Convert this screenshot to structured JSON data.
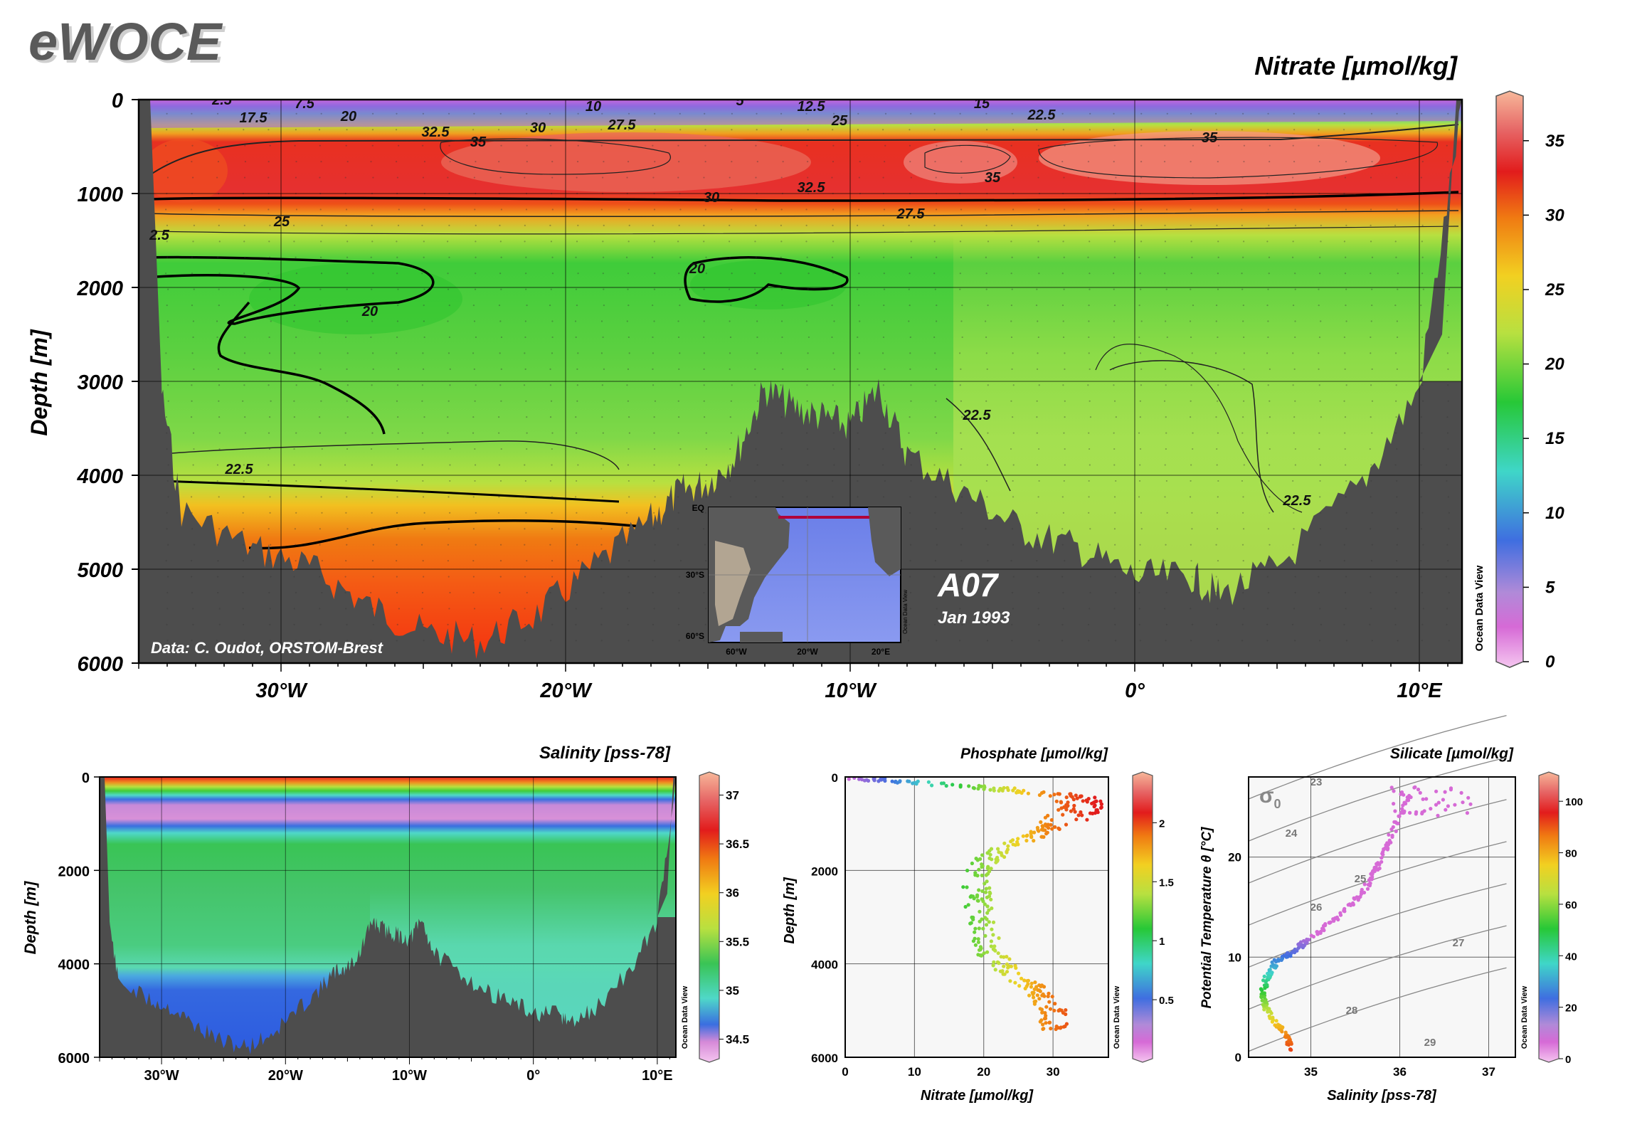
{
  "header": {
    "logo": "eWOCE"
  },
  "main_section": {
    "title": "Nitrate [µmol/kg]",
    "ylabel": "Depth [m]",
    "section_name": "A07",
    "date": "Jan 1993",
    "credit": "Data: C. Oudot, ORSTOM-Brest",
    "watermark": "Ocean Data View",
    "y_ticks": [
      "0",
      "1000",
      "2000",
      "3000",
      "4000",
      "5000",
      "6000"
    ],
    "x_ticks": [
      "30°W",
      "20°W",
      "10°W",
      "0°",
      "10°E"
    ],
    "colorbar_ticks": [
      "0",
      "5",
      "10",
      "15",
      "20",
      "25",
      "30",
      "35"
    ],
    "contour_labels": [
      "2.5",
      "7.5",
      "10",
      "5",
      "12.5",
      "15",
      "22.5",
      "17.5",
      "20",
      "32.5",
      "30",
      "27.5",
      "25",
      "35",
      "35",
      "35",
      "30",
      "32.5",
      "27.5",
      "25",
      "2.5",
      "20",
      "20",
      "22.5",
      "22.5",
      "22.5"
    ],
    "inset_map": {
      "lat_labels": [
        "EQ",
        "30°S",
        "60°S"
      ],
      "lon_labels": [
        "60°W",
        "20°W",
        "20°E"
      ],
      "watermark": "Ocean Data View"
    }
  },
  "salinity_panel": {
    "title": "Salinity [pss-78]",
    "ylabel": "Depth [m]",
    "y_ticks": [
      "0",
      "2000",
      "4000",
      "6000"
    ],
    "x_ticks": [
      "30°W",
      "20°W",
      "10°W",
      "0°",
      "10°E"
    ],
    "colorbar_ticks": [
      "34.5",
      "35",
      "35.5",
      "36",
      "36.5",
      "37"
    ],
    "watermark": "Ocean Data View"
  },
  "phosphate_panel": {
    "title": "Phosphate [µmol/kg]",
    "ylabel": "Depth [m]",
    "xlabel": "Nitrate [µmol/kg]",
    "y_ticks": [
      "0",
      "2000",
      "4000",
      "6000"
    ],
    "x_ticks": [
      "0",
      "10",
      "20",
      "30"
    ],
    "colorbar_ticks": [
      "0.5",
      "1",
      "1.5",
      "2"
    ],
    "watermark": "Ocean Data View"
  },
  "silicate_panel": {
    "title": "Silicate [µmol/kg]",
    "ylabel": "Potential Temperature θ [°C]",
    "xlabel": "Salinity [pss-78]",
    "y_ticks": [
      "0",
      "10",
      "20"
    ],
    "x_ticks": [
      "35",
      "36",
      "37"
    ],
    "sigma_label": "σ",
    "sigma_sub": "0",
    "isopycnal_labels": [
      "23",
      "24",
      "25",
      "26",
      "27",
      "28",
      "29"
    ],
    "colorbar_ticks": [
      "0",
      "20",
      "40",
      "60",
      "80",
      "100"
    ],
    "watermark": "Ocean Data View"
  },
  "colors": {
    "bathymetry": "#4d4d4d",
    "accent_title": "#000000",
    "logo_fill": "#5a5a5a"
  },
  "chart_data": [
    {
      "type": "heatmap",
      "title": "Nitrate [µmol/kg]",
      "ylabel": "Depth [m]",
      "xlim": [
        -35,
        11.5
      ],
      "ylim": [
        6000,
        0
      ],
      "x_ticks": [
        -30,
        -20,
        -10,
        0,
        10
      ],
      "depths": [
        0,
        50,
        150,
        250,
        400,
        600,
        900,
        1100,
        1400,
        1800,
        2500,
        3500,
        4200,
        4700,
        5500
      ],
      "nitrate_profile_west": [
        1,
        5,
        17,
        28,
        33,
        36,
        33,
        28,
        22,
        17,
        17,
        18,
        26,
        30,
        31
      ],
      "nitrate_profile_east": [
        1,
        8,
        20,
        30,
        34,
        36,
        32,
        27,
        22,
        20,
        22,
        23,
        23,
        23,
        23
      ],
      "bottom_depth": [
        [
          -35,
          0
        ],
        [
          -34.5,
          2500
        ],
        [
          -33.5,
          4300
        ],
        [
          -31,
          4700
        ],
        [
          -29,
          4900
        ],
        [
          -27,
          5300
        ],
        [
          -25,
          5600
        ],
        [
          -23,
          5700
        ],
        [
          -21,
          5400
        ],
        [
          -19,
          4900
        ],
        [
          -17,
          4400
        ],
        [
          -16,
          4100
        ],
        [
          -15,
          4000
        ],
        [
          -14,
          3700
        ],
        [
          -13,
          3000
        ],
        [
          -12,
          3200
        ],
        [
          -11,
          3300
        ],
        [
          -10,
          3400
        ],
        [
          -9,
          3000
        ],
        [
          -8,
          3700
        ],
        [
          -6,
          4100
        ],
        [
          -4,
          4500
        ],
        [
          -2,
          4700
        ],
        [
          0,
          5000
        ],
        [
          2,
          5000
        ],
        [
          3,
          5200
        ],
        [
          5,
          4900
        ],
        [
          8,
          4000
        ],
        [
          10,
          3000
        ],
        [
          11.5,
          0
        ]
      ],
      "colorbar": {
        "range": [
          0,
          38
        ],
        "ticks": [
          0,
          5,
          10,
          15,
          20,
          25,
          30,
          35
        ]
      }
    },
    {
      "type": "heatmap",
      "title": "Salinity [pss-78]",
      "ylabel": "Depth [m]",
      "xlim": [
        -35,
        11.5
      ],
      "ylim": [
        6000,
        0
      ],
      "depths": [
        0,
        50,
        150,
        300,
        500,
        800,
        1100,
        1500,
        2500,
        3800,
        4300,
        5500
      ],
      "salinity_profile": [
        36.8,
        36.2,
        35.6,
        35.1,
        34.55,
        34.45,
        34.75,
        34.95,
        34.98,
        34.93,
        34.75,
        34.7
      ],
      "colorbar": {
        "range": [
          34.3,
          37.2
        ],
        "ticks": [
          34.5,
          35,
          35.5,
          36,
          36.5,
          37
        ]
      }
    },
    {
      "type": "scatter",
      "title": "Phosphate [µmol/kg]",
      "xlabel": "Nitrate [µmol/kg]",
      "ylabel": "Depth [m]",
      "xlim": [
        0,
        38
      ],
      "ylim": [
        6000,
        0
      ],
      "colorbar": {
        "range": [
          0,
          2.4
        ],
        "ticks": [
          0.5,
          1,
          1.5,
          2
        ]
      },
      "profile": {
        "depth": [
          20,
          100,
          250,
          400,
          600,
          900,
          1200,
          1600,
          2000,
          2600,
          3200,
          3800,
          4200,
          4600,
          5000,
          5400
        ],
        "nitrate": [
          2,
          8,
          22,
          32,
          35,
          32,
          28,
          22,
          19,
          19,
          20,
          21,
          24,
          28,
          30,
          30
        ]
      }
    },
    {
      "type": "scatter",
      "title": "Silicate [µmol/kg]",
      "xlabel": "Salinity [pss-78]",
      "ylabel": "Potential Temperature θ [°C]",
      "xlim": [
        34.3,
        37.3
      ],
      "ylim": [
        0,
        28
      ],
      "colorbar": {
        "range": [
          0,
          110
        ],
        "ticks": [
          0,
          20,
          40,
          60,
          80,
          100
        ]
      },
      "profile": {
        "salinity": [
          34.8,
          34.7,
          34.55,
          34.45,
          34.5,
          34.6,
          34.8,
          35.0,
          35.3,
          35.6,
          35.75,
          35.9,
          36.1
        ],
        "theta": [
          0.5,
          2.5,
          4.0,
          6.0,
          8.0,
          9.5,
          10.5,
          12.0,
          14.0,
          16.5,
          19.0,
          22.0,
          26.0
        ]
      },
      "isopycnals": [
        23,
        24,
        25,
        26,
        27,
        28,
        29
      ]
    }
  ]
}
